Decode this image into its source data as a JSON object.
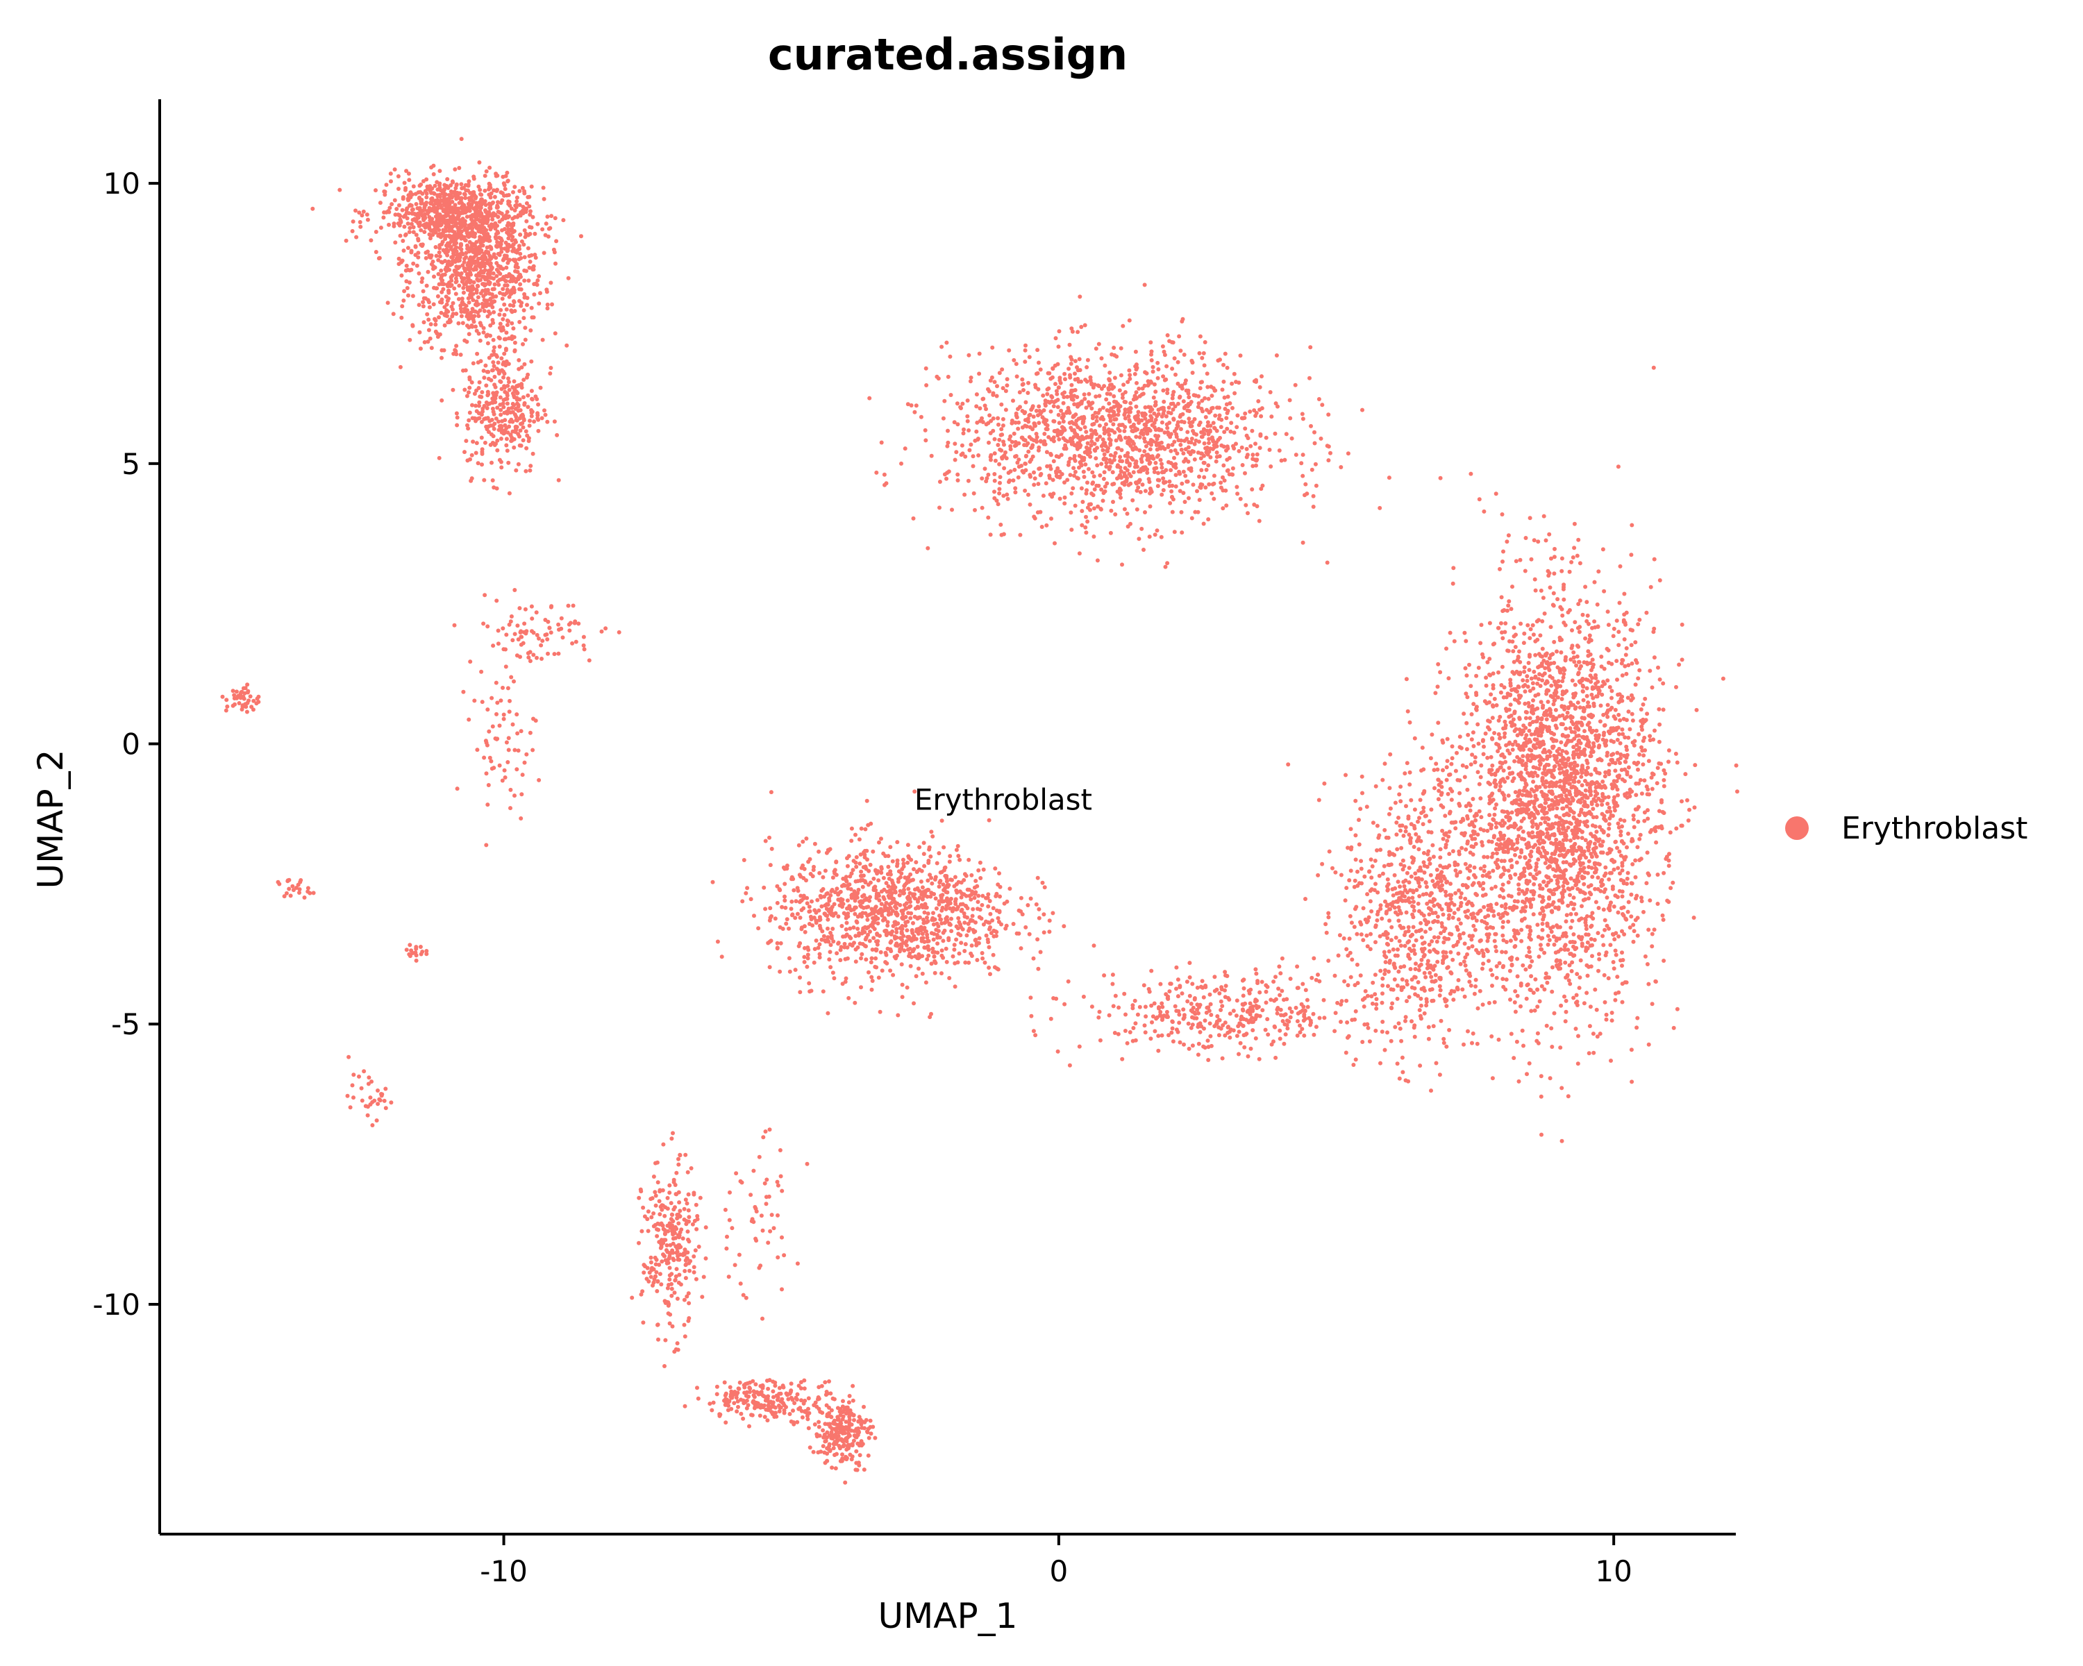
{
  "chart_data": {
    "type": "scatter",
    "title": "curated.assign",
    "xlabel": "UMAP_1",
    "ylabel": "UMAP_2",
    "xlim": [
      -16.2,
      12.2
    ],
    "ylim": [
      -14.1,
      11.5
    ],
    "xticks": [
      -10,
      0,
      10
    ],
    "xtick_labels": [
      "-10",
      "0",
      "10"
    ],
    "yticks": [
      -10,
      -5,
      0,
      5,
      10
    ],
    "ytick_labels": [
      "-10",
      "-5",
      "0",
      "5",
      "10"
    ],
    "grid": false,
    "legend_position": "right",
    "series": [
      {
        "name": "Erythroblast",
        "color": "#F8766D",
        "label_position": [
          -1.0,
          -1.0
        ],
        "regions": [
          {
            "center": [
              -10.5,
              8.5
            ],
            "spread": [
              1.2,
              1.4
            ],
            "weight": 0.09
          },
          {
            "center": [
              -11.0,
              9.5
            ],
            "spread": [
              1.3,
              0.6
            ],
            "weight": 0.05
          },
          {
            "center": [
              -10.0,
              6.0
            ],
            "spread": [
              0.7,
              1.2
            ],
            "weight": 0.03
          },
          {
            "center": [
              -9.5,
              2.0
            ],
            "spread": [
              1.2,
              0.6
            ],
            "weight": 0.008
          },
          {
            "center": [
              -10.0,
              0.0
            ],
            "spread": [
              0.6,
              1.2
            ],
            "weight": 0.006
          },
          {
            "center": [
              -14.7,
              0.8
            ],
            "spread": [
              0.3,
              0.25
            ],
            "weight": 0.004
          },
          {
            "center": [
              -13.8,
              -2.6
            ],
            "spread": [
              0.3,
              0.2
            ],
            "weight": 0.002
          },
          {
            "center": [
              -11.6,
              -3.7
            ],
            "spread": [
              0.2,
              0.15
            ],
            "weight": 0.0015
          },
          {
            "center": [
              -12.4,
              -6.3
            ],
            "spread": [
              0.4,
              0.4
            ],
            "weight": 0.003
          },
          {
            "center": [
              1.0,
              5.5
            ],
            "spread": [
              3.0,
              1.5
            ],
            "weight": 0.14
          },
          {
            "center": [
              9.0,
              -1.0
            ],
            "spread": [
              1.8,
              3.6
            ],
            "weight": 0.24
          },
          {
            "center": [
              6.5,
              -3.0
            ],
            "spread": [
              1.4,
              2.5
            ],
            "weight": 0.07
          },
          {
            "center": [
              -3.0,
              -3.0
            ],
            "spread": [
              2.2,
              1.2
            ],
            "weight": 0.1
          },
          {
            "center": [
              3.0,
              -4.8
            ],
            "spread": [
              2.5,
              0.7
            ],
            "weight": 0.035
          },
          {
            "center": [
              -7.0,
              -9.0
            ],
            "spread": [
              0.5,
              1.5
            ],
            "weight": 0.025
          },
          {
            "center": [
              -5.2,
              -11.7
            ],
            "spread": [
              1.2,
              0.35
            ],
            "weight": 0.02
          },
          {
            "center": [
              -3.9,
              -12.3
            ],
            "spread": [
              0.5,
              0.6
            ],
            "weight": 0.02
          },
          {
            "center": [
              -5.5,
              -8.5
            ],
            "spread": [
              0.8,
              1.5
            ],
            "weight": 0.005
          }
        ]
      }
    ],
    "annotations": [
      {
        "text": "Erythroblast",
        "x": -1.0,
        "y": -1.0
      }
    ]
  }
}
